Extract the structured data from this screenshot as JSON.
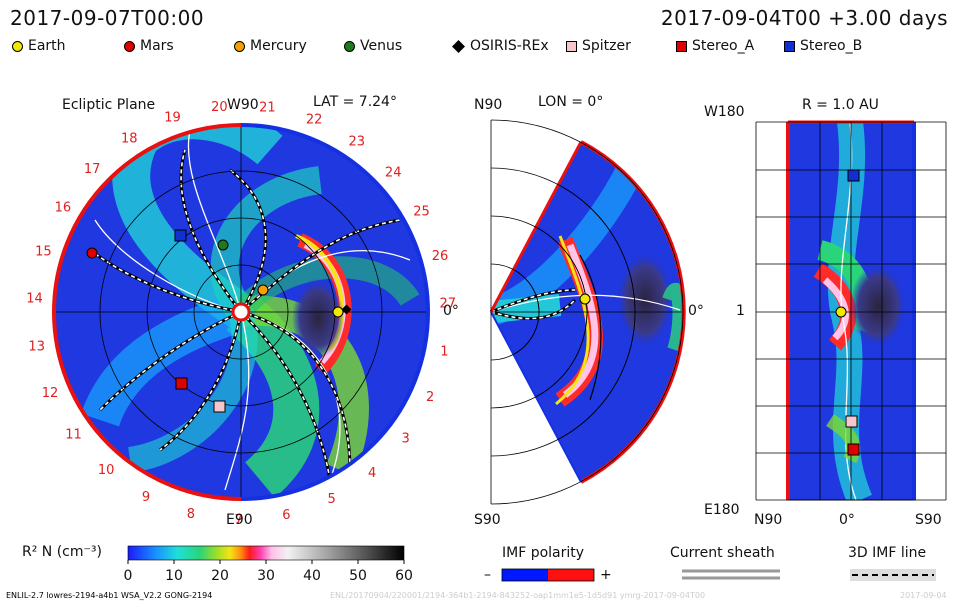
{
  "header": {
    "left_time": "2017-09-07T00:00",
    "right_time": "2017-09-04T00 +3.00 days"
  },
  "legend": [
    {
      "label": "Earth",
      "shape": "circle",
      "color": "#f5e800"
    },
    {
      "label": "Mars",
      "shape": "circle",
      "color": "#e00000"
    },
    {
      "label": "Mercury",
      "shape": "circle",
      "color": "#f5a000"
    },
    {
      "label": "Venus",
      "shape": "circle",
      "color": "#1f7a1f"
    },
    {
      "label": "OSIRIS-REx",
      "shape": "diamond",
      "color": "#000000"
    },
    {
      "label": "Spitzer",
      "shape": "square",
      "color": "#f6c6cc"
    },
    {
      "label": "Stereo_A",
      "shape": "square",
      "color": "#e00000"
    },
    {
      "label": "Stereo_B",
      "shape": "square",
      "color": "#1030d0"
    }
  ],
  "panel_ecliptic": {
    "title": "Ecliptic Plane",
    "top_label": "W90",
    "bottom_label": "E90",
    "lat_label": "LAT = 7.24°",
    "zero_label": "0°",
    "clock_labels": [
      "20",
      "21",
      "22",
      "23",
      "24",
      "25",
      "26",
      "27",
      "1",
      "2",
      "3",
      "4",
      "5",
      "6",
      "7",
      "8",
      "9",
      "10",
      "11",
      "12",
      "13",
      "14",
      "15",
      "16",
      "17",
      "18",
      "19"
    ]
  },
  "panel_meridional": {
    "top_label": "N90",
    "bottom_label": "S90",
    "lon_label": "LON = 0°",
    "zero_label": "0°"
  },
  "panel_radial": {
    "r_label": "R = 1.0 AU",
    "left_top": "W180",
    "left_mid": "1",
    "left_bottom": "E180",
    "bottom_left": "N90",
    "bottom_mid": "0°",
    "bottom_right": "S90"
  },
  "colorbar": {
    "label": "R² N (cm⁻³)",
    "ticks": [
      "0",
      "10",
      "20",
      "30",
      "40",
      "50",
      "60"
    ],
    "min": 0,
    "max": 60
  },
  "imf_polarity": {
    "title": "IMF polarity",
    "minus": "–",
    "plus": "+",
    "neg_color": "#0018ff",
    "pos_color": "#ff1010"
  },
  "current_sheath": {
    "title": "Current sheath"
  },
  "imf_line": {
    "title": "3D IMF line"
  },
  "footer": {
    "model": "ENLIL-2.7 lowres-2194-a4b1 WSA_V2.2 GONG-2194",
    "faint_id": "ENL/20170904/220001/2194-364b1-2194-843252-oap1mm1e5-1d5d91 ymrg-2017-09-04T00",
    "faint_date": "2017-09-04"
  }
}
